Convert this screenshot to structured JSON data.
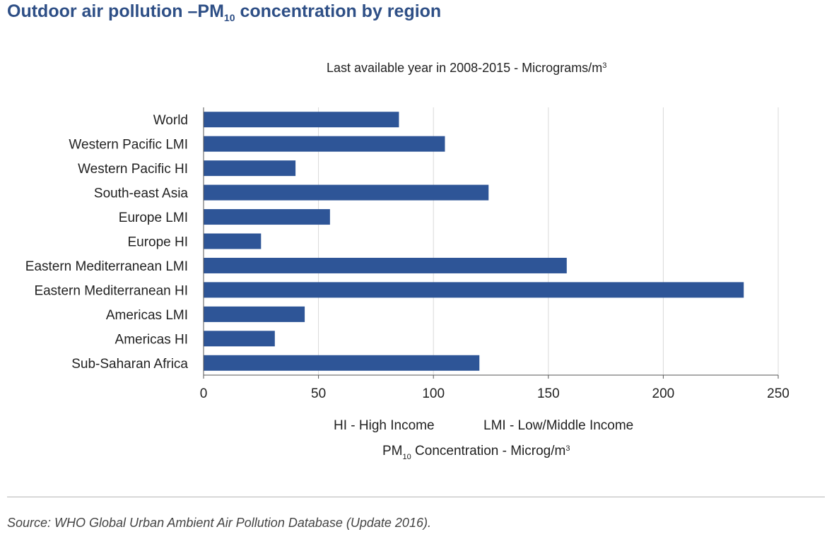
{
  "header": {
    "title_pre": "Outdoor air pollution –PM",
    "title_sub": "10",
    "title_post": " concentration by region"
  },
  "subtitle": {
    "text": "Last available year in 2008-2015 - Micrograms/m",
    "sup": "3"
  },
  "legend_notes": {
    "hi": "HI - High Income",
    "lmi": "LMI - Low/Middle Income"
  },
  "xaxis_label": {
    "pre": "PM",
    "sub": "10",
    "post": " Concentration - Microg/m",
    "sup": "3"
  },
  "footer": {
    "source": "Source: WHO Global Urban Ambient Air Pollution Database (Update 2016)."
  },
  "colors": {
    "bar": "#2e5597",
    "title": "#2e4f86",
    "grid": "#d9d9d9",
    "axis": "#555555"
  },
  "chart_data": {
    "type": "bar",
    "orientation": "horizontal",
    "categories": [
      "World",
      "Western Pacific LMI",
      "Western Pacific HI",
      "South-east Asia",
      "Europe LMI",
      "Europe HI",
      "Eastern Mediterranean LMI",
      "Eastern Mediterranean HI",
      "Americas LMI",
      "Americas HI",
      "Sub-Saharan Africa"
    ],
    "values": [
      85,
      105,
      40,
      124,
      55,
      25,
      158,
      235,
      44,
      31,
      120
    ],
    "xlim": [
      0,
      250
    ],
    "xticks": [
      0,
      50,
      100,
      150,
      200,
      250
    ],
    "grid": true
  }
}
